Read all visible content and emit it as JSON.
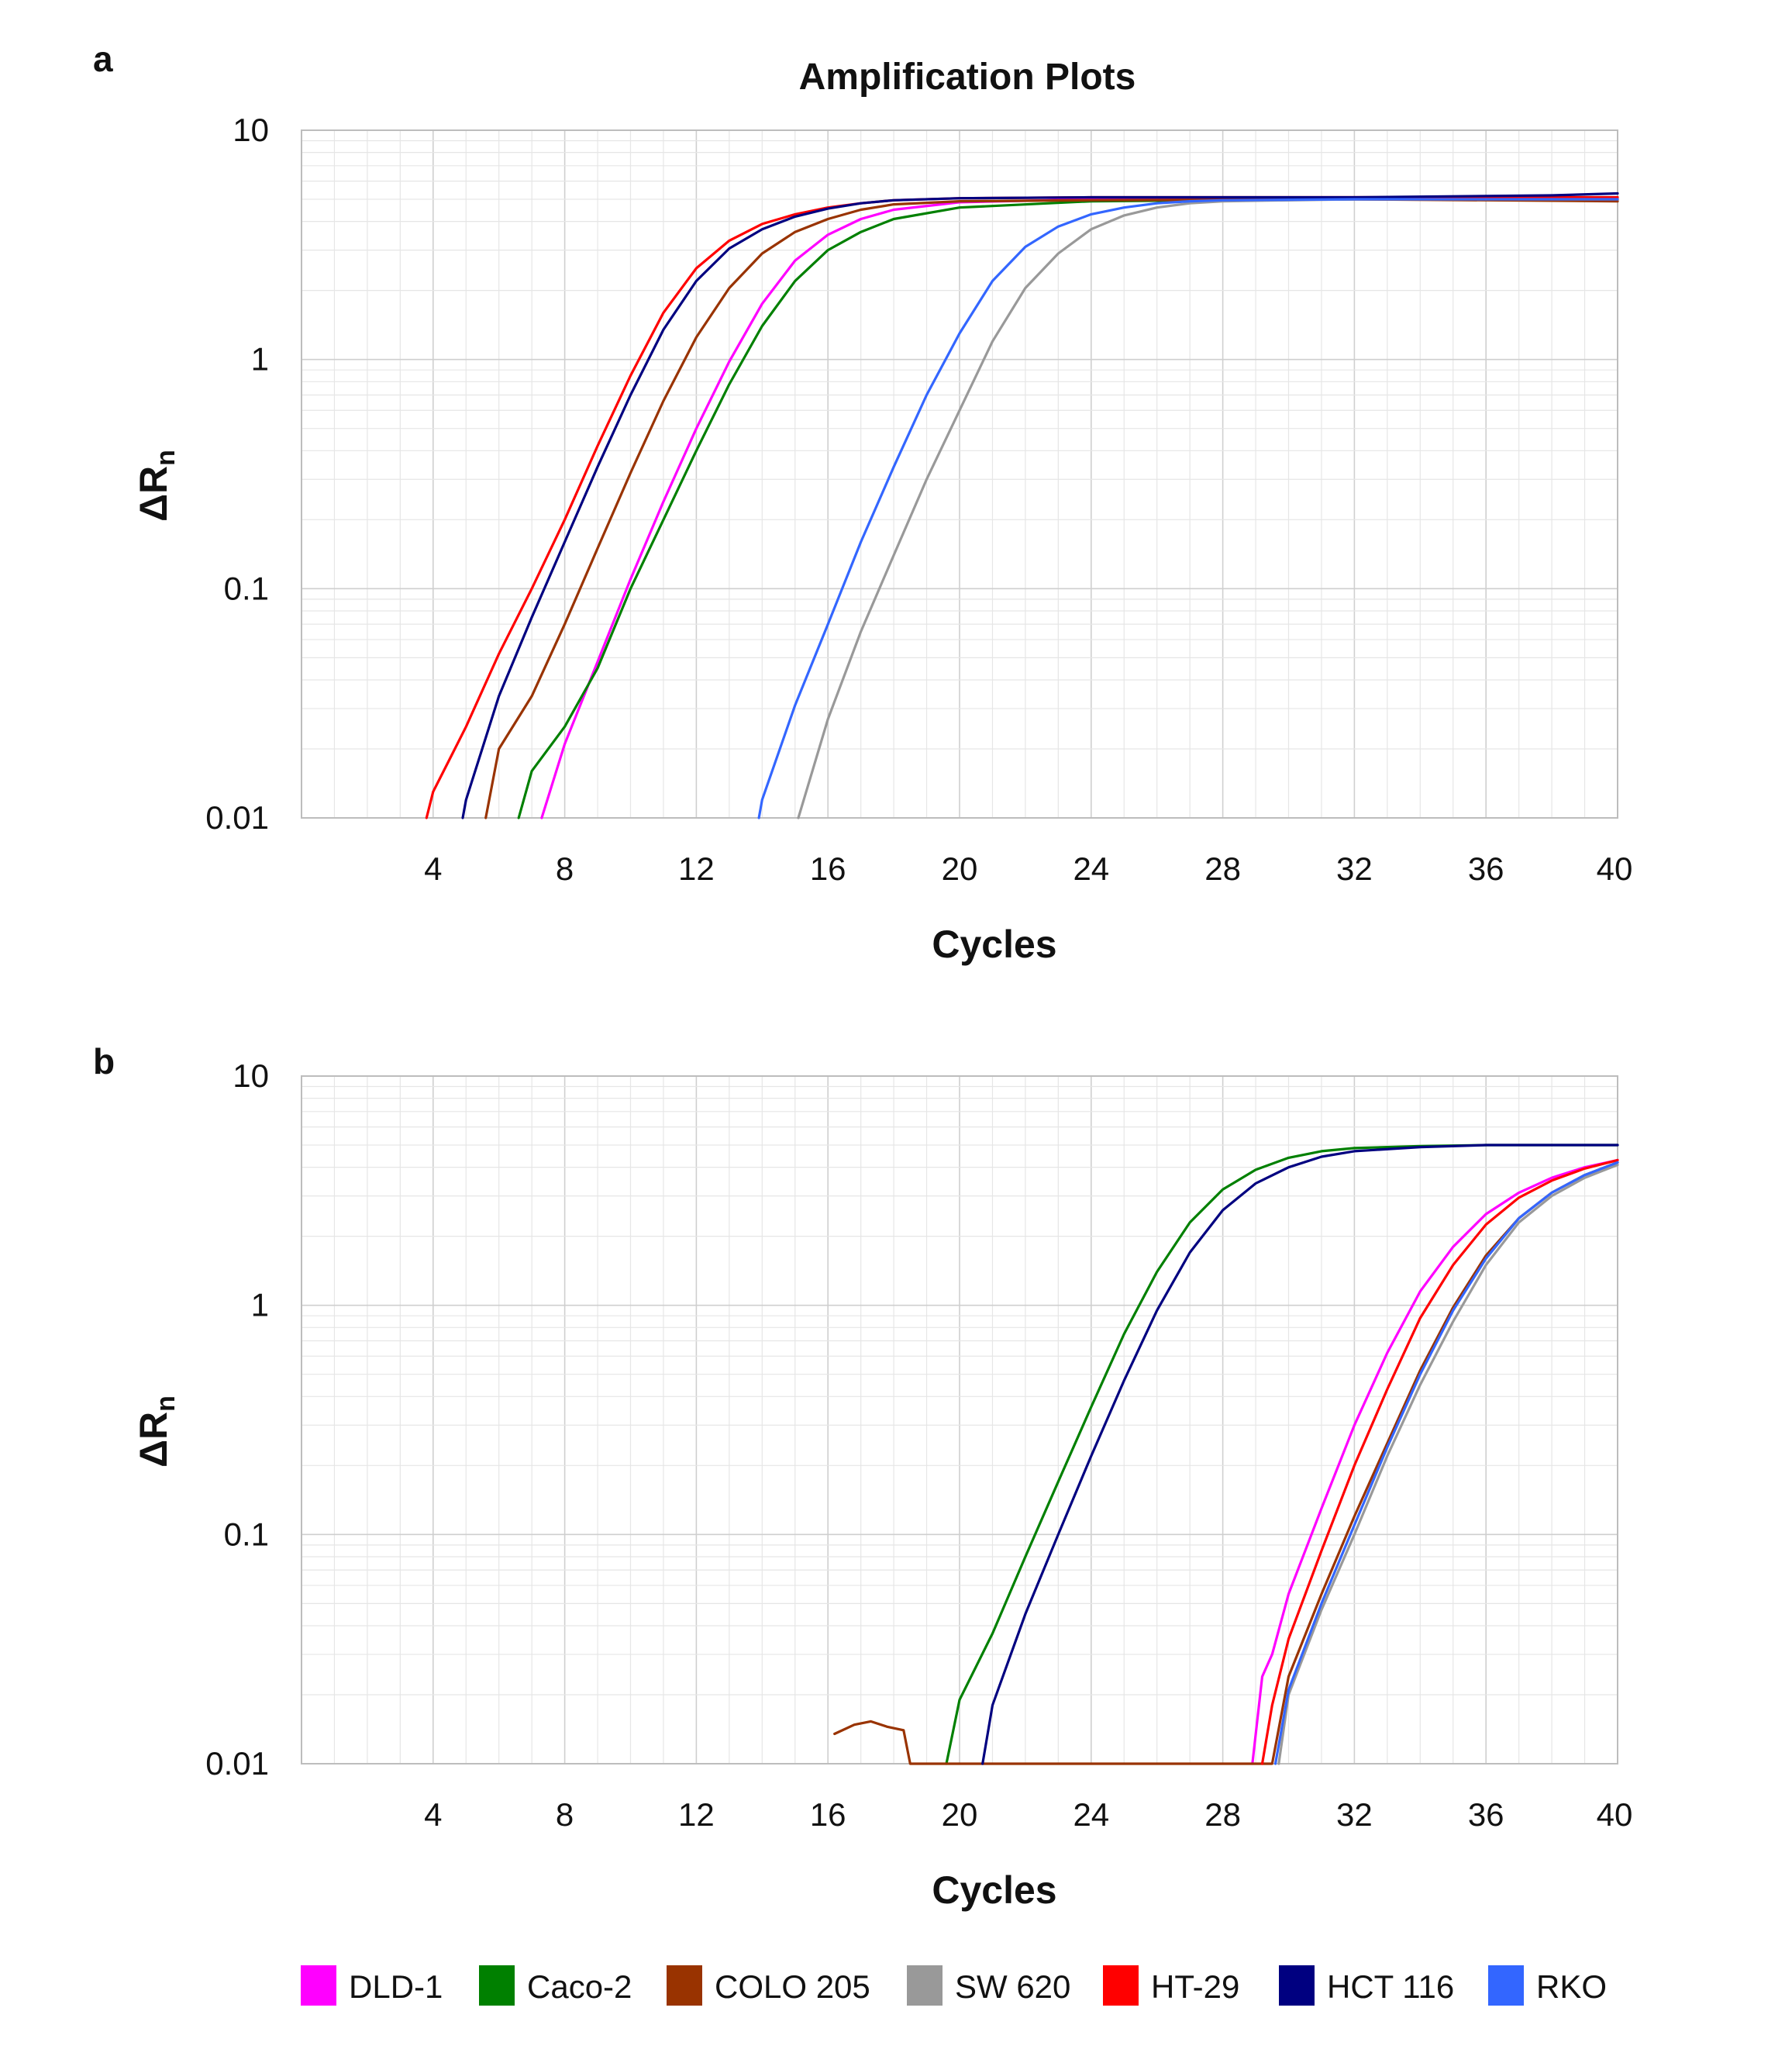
{
  "chart_data": [
    {
      "panel": "a",
      "type": "line",
      "title": "Amplification Plots",
      "xlabel": "Cycles",
      "ylabel": "ΔR",
      "ylabel_sub": "n",
      "xlim": [
        0,
        40
      ],
      "xticks": [
        4,
        8,
        12,
        16,
        20,
        24,
        28,
        32,
        36,
        40
      ],
      "yscale": "log",
      "ylim": [
        0.01,
        10
      ],
      "yticks": [
        {
          "value": 0.01,
          "label": "0.01"
        },
        {
          "value": 0.1,
          "label": "0.1"
        },
        {
          "value": 1,
          "label": "1"
        },
        {
          "value": 10,
          "label": "10"
        }
      ],
      "grid": true,
      "series": [
        {
          "name": "DLD-1",
          "color": "#ff00ff",
          "x": [
            7.3,
            8,
            9,
            10,
            11,
            12,
            13,
            14,
            15,
            16,
            17,
            18,
            20,
            24,
            32,
            40
          ],
          "y": [
            0.01,
            0.021,
            0.048,
            0.11,
            0.24,
            0.5,
            0.98,
            1.75,
            2.7,
            3.5,
            4.1,
            4.5,
            4.85,
            5.0,
            5.0,
            5.0
          ]
        },
        {
          "name": "Caco-2",
          "color": "#008000",
          "x": [
            6.6,
            7,
            8,
            9,
            10,
            11,
            12,
            13,
            14,
            15,
            16,
            17,
            18,
            20,
            24,
            32,
            40
          ],
          "y": [
            0.01,
            0.016,
            0.025,
            0.045,
            0.1,
            0.2,
            0.4,
            0.78,
            1.4,
            2.2,
            3.0,
            3.6,
            4.1,
            4.6,
            4.9,
            5.0,
            5.0
          ]
        },
        {
          "name": "COLO 205",
          "color": "#993300",
          "x": [
            5.6,
            6,
            7,
            8,
            9,
            10,
            11,
            12,
            13,
            14,
            15,
            16,
            17,
            18,
            20,
            24,
            32,
            40
          ],
          "y": [
            0.01,
            0.02,
            0.034,
            0.07,
            0.15,
            0.32,
            0.66,
            1.25,
            2.05,
            2.9,
            3.6,
            4.1,
            4.5,
            4.75,
            4.9,
            4.95,
            5.0,
            4.9
          ]
        },
        {
          "name": "SW 620",
          "color": "#999999",
          "x": [
            15.1,
            16,
            17,
            18,
            19,
            20,
            21,
            22,
            23,
            24,
            25,
            26,
            27,
            28,
            32,
            40
          ],
          "y": [
            0.01,
            0.027,
            0.065,
            0.14,
            0.3,
            0.6,
            1.2,
            2.05,
            2.9,
            3.7,
            4.25,
            4.6,
            4.8,
            4.9,
            5.0,
            5.0
          ]
        },
        {
          "name": "HT-29",
          "color": "#ff0000",
          "x": [
            3.8,
            4,
            4.5,
            5,
            6,
            7,
            8,
            9,
            10,
            11,
            12,
            13,
            14,
            15,
            16,
            17,
            18,
            20,
            24,
            32,
            40
          ],
          "y": [
            0.01,
            0.013,
            0.018,
            0.025,
            0.052,
            0.1,
            0.2,
            0.42,
            0.85,
            1.6,
            2.5,
            3.3,
            3.9,
            4.3,
            4.6,
            4.8,
            4.95,
            5.05,
            5.1,
            5.1,
            5.1
          ]
        },
        {
          "name": "HCT 116",
          "color": "#000080",
          "x": [
            4.9,
            5,
            6,
            7,
            8,
            9,
            10,
            11,
            12,
            13,
            14,
            15,
            16,
            17,
            18,
            20,
            24,
            32,
            38,
            40
          ],
          "y": [
            0.01,
            0.012,
            0.034,
            0.075,
            0.16,
            0.34,
            0.7,
            1.35,
            2.2,
            3.05,
            3.7,
            4.2,
            4.55,
            4.8,
            4.95,
            5.05,
            5.1,
            5.1,
            5.2,
            5.3
          ]
        },
        {
          "name": "RKO",
          "color": "#3366ff",
          "x": [
            13.9,
            14,
            15,
            16,
            17,
            18,
            19,
            20,
            21,
            22,
            23,
            24,
            25,
            26,
            27,
            28,
            32,
            40
          ],
          "y": [
            0.01,
            0.012,
            0.031,
            0.07,
            0.16,
            0.34,
            0.7,
            1.3,
            2.2,
            3.1,
            3.8,
            4.3,
            4.6,
            4.8,
            4.9,
            4.95,
            5.0,
            5.0
          ]
        }
      ]
    },
    {
      "panel": "b",
      "type": "line",
      "title": "",
      "xlabel": "Cycles",
      "ylabel": "ΔR",
      "ylabel_sub": "n",
      "xlim": [
        0,
        40
      ],
      "xticks": [
        4,
        8,
        12,
        16,
        20,
        24,
        28,
        32,
        36,
        40
      ],
      "yscale": "log",
      "ylim": [
        0.01,
        10
      ],
      "yticks": [
        {
          "value": 0.01,
          "label": "0.01"
        },
        {
          "value": 0.1,
          "label": "0.1"
        },
        {
          "value": 1,
          "label": "1"
        },
        {
          "value": 10,
          "label": "10"
        }
      ],
      "grid": true,
      "series": [
        {
          "name": "DLD-1",
          "color": "#ff00ff",
          "x": [
            28.9,
            29.2,
            29.5,
            30,
            31,
            32,
            33,
            34,
            35,
            36,
            37,
            38,
            39,
            40
          ],
          "y": [
            0.01,
            0.024,
            0.03,
            0.055,
            0.13,
            0.3,
            0.62,
            1.15,
            1.8,
            2.5,
            3.1,
            3.6,
            4.0,
            4.3
          ]
        },
        {
          "name": "Caco-2",
          "color": "#008000",
          "x": [
            19.6,
            20,
            21,
            22,
            23,
            24,
            25,
            26,
            27,
            28,
            29,
            30,
            31,
            32,
            34,
            36,
            40
          ],
          "y": [
            0.01,
            0.019,
            0.037,
            0.08,
            0.17,
            0.36,
            0.75,
            1.4,
            2.3,
            3.2,
            3.9,
            4.4,
            4.7,
            4.85,
            4.95,
            5.0,
            5.0
          ]
        },
        {
          "name": "COLO 205",
          "color": "#993300",
          "x": [
            16.2,
            16.8,
            17.3,
            17.8,
            18.3,
            18.5,
            29.5,
            30,
            31,
            32,
            33,
            34,
            35,
            36,
            37,
            38,
            39,
            40
          ],
          "y": [
            0.0135,
            0.0148,
            0.0153,
            0.0145,
            0.014,
            0.01,
            0.01,
            0.024,
            0.055,
            0.12,
            0.25,
            0.52,
            0.98,
            1.65,
            2.4,
            3.1,
            3.7,
            4.2
          ]
        },
        {
          "name": "SW 620",
          "color": "#999999",
          "x": [
            29.7,
            30,
            31,
            32,
            33,
            34,
            35,
            36,
            37,
            38,
            39,
            40
          ],
          "y": [
            0.01,
            0.02,
            0.047,
            0.1,
            0.22,
            0.45,
            0.85,
            1.5,
            2.3,
            3.0,
            3.6,
            4.1
          ]
        },
        {
          "name": "HT-29",
          "color": "#ff0000",
          "x": [
            29.2,
            29.5,
            30,
            31,
            32,
            33,
            34,
            35,
            36,
            37,
            38,
            39,
            40
          ],
          "y": [
            0.01,
            0.018,
            0.035,
            0.085,
            0.2,
            0.43,
            0.88,
            1.5,
            2.25,
            2.95,
            3.5,
            3.95,
            4.3
          ]
        },
        {
          "name": "HCT 116",
          "color": "#000080",
          "x": [
            20.7,
            21,
            22,
            23,
            24,
            25,
            26,
            27,
            28,
            29,
            30,
            31,
            32,
            34,
            36,
            40
          ],
          "y": [
            0.01,
            0.018,
            0.045,
            0.1,
            0.22,
            0.47,
            0.95,
            1.7,
            2.6,
            3.4,
            4.0,
            4.45,
            4.7,
            4.9,
            5.0,
            5.0
          ]
        },
        {
          "name": "RKO",
          "color": "#3366ff",
          "x": [
            29.6,
            30,
            31,
            32,
            33,
            34,
            35,
            36,
            37,
            38,
            39,
            40
          ],
          "y": [
            0.01,
            0.021,
            0.05,
            0.11,
            0.24,
            0.5,
            0.95,
            1.6,
            2.4,
            3.1,
            3.7,
            4.2
          ]
        }
      ]
    }
  ],
  "legend": [
    {
      "name": "DLD-1",
      "color": "#ff00ff"
    },
    {
      "name": "Caco-2",
      "color": "#008000"
    },
    {
      "name": "COLO 205",
      "color": "#993300"
    },
    {
      "name": "SW 620",
      "color": "#999999"
    },
    {
      "name": "HT-29",
      "color": "#ff0000"
    },
    {
      "name": "HCT 116",
      "color": "#000080"
    },
    {
      "name": "RKO",
      "color": "#3366ff"
    }
  ]
}
